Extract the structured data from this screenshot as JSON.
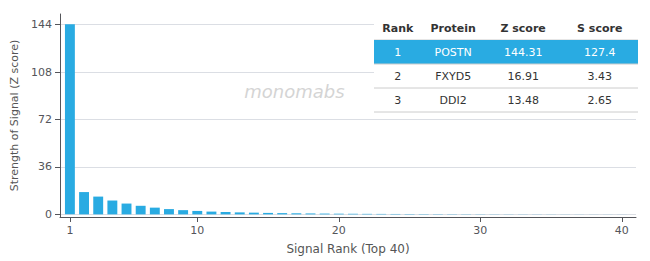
{
  "chart_data": {
    "type": "bar",
    "x": [
      1,
      2,
      3,
      4,
      5,
      6,
      7,
      8,
      9,
      10,
      11,
      12,
      13,
      14,
      15,
      16,
      17,
      18,
      19,
      20,
      21,
      22,
      23,
      24,
      25,
      26,
      27,
      28,
      29,
      30,
      31,
      32,
      33,
      34,
      35,
      36,
      37,
      38,
      39,
      40
    ],
    "values": [
      144.31,
      16.91,
      13.48,
      10.5,
      8.2,
      6.5,
      5.1,
      4.0,
      3.2,
      2.6,
      2.1,
      1.8,
      1.5,
      1.3,
      1.1,
      0.95,
      0.82,
      0.7,
      0.6,
      0.52,
      0.45,
      0.39,
      0.34,
      0.3,
      0.26,
      0.23,
      0.2,
      0.18,
      0.16,
      0.14,
      0.12,
      0.11,
      0.1,
      0.09,
      0.08,
      0.07,
      0.06,
      0.055,
      0.05,
      0.045
    ],
    "color": "#29ABE2",
    "xlabel": "Signal Rank (Top 40)",
    "ylabel": "Strength of Signal (Z score)",
    "xlim": [
      0.3,
      41
    ],
    "xticks": [
      1,
      10,
      20,
      30,
      40
    ],
    "ylim": [
      -2,
      152
    ],
    "yticks": [
      0,
      36,
      72,
      108,
      144
    ],
    "grid": true,
    "annotations": [
      "monomabs"
    ],
    "table": {
      "columns": [
        "Rank",
        "Protein",
        "Z score",
        "S score"
      ],
      "rows": [
        [
          "1",
          "POSTN",
          "144.31",
          "127.4"
        ],
        [
          "2",
          "FXYD5",
          "16.91",
          "3.43"
        ],
        [
          "3",
          "DDI2",
          "13.48",
          "2.65"
        ]
      ],
      "highlight": [
        true,
        false,
        false
      ]
    }
  }
}
